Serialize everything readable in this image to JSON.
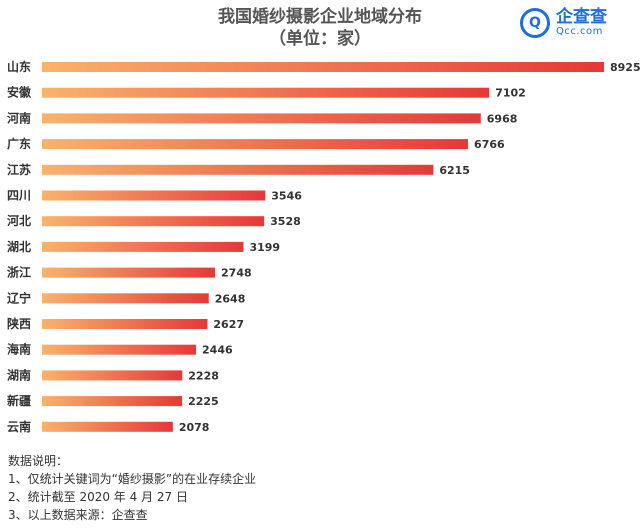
{
  "header": {
    "title": "我国婚纱摄影企业地域分布",
    "subtitle": "（单位：家）"
  },
  "logo": {
    "name": "企查查",
    "domain": "Qcc.com",
    "icon": "qcc-logo-icon",
    "color": "#1e6fd9"
  },
  "colors": {
    "bar_start": "#f9b36b",
    "bar_end": "#e63838"
  },
  "chart_data": {
    "type": "bar",
    "orientation": "horizontal",
    "title": "我国婚纱摄影企业地域分布",
    "subtitle": "（单位：家）",
    "categories": [
      "山东",
      "安徽",
      "河南",
      "广东",
      "江苏",
      "四川",
      "河北",
      "湖北",
      "浙江",
      "辽宁",
      "陕西",
      "海南",
      "湖南",
      "新疆",
      "云南"
    ],
    "values": [
      8925,
      7102,
      6968,
      6766,
      6215,
      3546,
      3528,
      3199,
      2748,
      2648,
      2627,
      2446,
      2228,
      2225,
      2078
    ],
    "value_labels": [
      "8925",
      "7102",
      "6968",
      "6766",
      "6215",
      "3546",
      "3528",
      "3199",
      "2748",
      "2648",
      "2627",
      "2446",
      "2228",
      "2225",
      "2078"
    ],
    "xlim": [
      0,
      8925
    ],
    "grid": false,
    "legend": "none"
  },
  "notes": {
    "heading": "数据说明：",
    "lines": [
      "1、仅统计关键词为“婚纱摄影”的在业存续企业",
      "2、统计截至 2020 年 4 月 27 日",
      "3、以上数据来源：企查查"
    ]
  }
}
